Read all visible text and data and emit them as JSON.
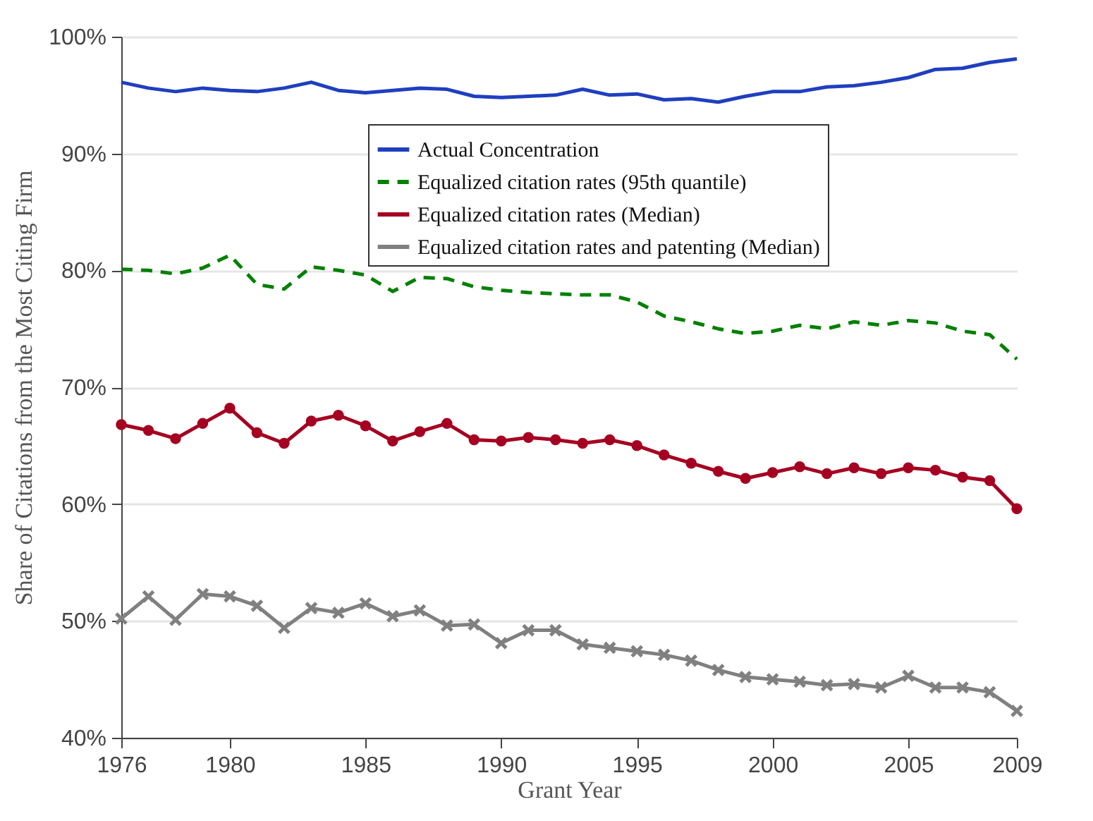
{
  "chart_data": {
    "type": "line",
    "xlabel": "Grant Year",
    "ylabel": "Share of Citations from the Most Citing Firm",
    "x": [
      1976,
      1977,
      1978,
      1979,
      1980,
      1981,
      1982,
      1983,
      1984,
      1985,
      1986,
      1987,
      1988,
      1989,
      1990,
      1991,
      1992,
      1993,
      1994,
      1995,
      1996,
      1997,
      1998,
      1999,
      2000,
      2001,
      2002,
      2003,
      2004,
      2005,
      2006,
      2007,
      2008,
      2009
    ],
    "xlim": [
      1976,
      2009
    ],
    "xticks": [
      1976,
      1980,
      1985,
      1990,
      1995,
      2000,
      2005,
      2009
    ],
    "ylim": [
      40,
      100
    ],
    "yticks": [
      {
        "value": 40,
        "label": "40%"
      },
      {
        "value": 50,
        "label": "50%"
      },
      {
        "value": 60,
        "label": "60%"
      },
      {
        "value": 70,
        "label": "70%"
      },
      {
        "value": 80,
        "label": "80%"
      },
      {
        "value": 90,
        "label": "90%"
      },
      {
        "value": 100,
        "label": "100%"
      }
    ],
    "grid": "y",
    "legend": "top right",
    "series": [
      {
        "name": "Actual Concentration",
        "color": "#1f3fbf",
        "line_style": "solid",
        "marker": "none",
        "values": [
          96.1,
          95.6,
          95.3,
          95.6,
          95.4,
          95.3,
          95.6,
          96.1,
          95.4,
          95.2,
          95.4,
          95.6,
          95.5,
          94.9,
          94.8,
          94.9,
          95.0,
          95.5,
          95.0,
          95.1,
          94.6,
          94.7,
          94.4,
          94.9,
          95.3,
          95.3,
          95.7,
          95.8,
          96.1,
          96.5,
          97.2,
          97.3,
          97.8,
          98.1
        ]
      },
      {
        "name": "Equalized citation rates (95th quantile)",
        "color": "#008000",
        "line_style": "dashed",
        "marker": "none",
        "values": [
          80.1,
          80.0,
          79.7,
          80.2,
          81.3,
          78.8,
          78.4,
          80.3,
          80.0,
          79.6,
          78.2,
          79.4,
          79.3,
          78.6,
          78.3,
          78.1,
          78.0,
          77.9,
          77.9,
          77.3,
          76.1,
          75.6,
          75.0,
          74.6,
          74.8,
          75.3,
          75.0,
          75.6,
          75.3,
          75.7,
          75.5,
          74.8,
          74.5,
          72.4
        ]
      },
      {
        "name": "Equalized citation rates (Median)",
        "color": "#a50021",
        "line_style": "solid",
        "marker": "circle",
        "values": [
          66.8,
          66.3,
          65.6,
          66.9,
          68.2,
          66.1,
          65.2,
          67.1,
          67.6,
          66.7,
          65.4,
          66.2,
          66.9,
          65.5,
          65.4,
          65.7,
          65.5,
          65.2,
          65.5,
          65.0,
          64.2,
          63.5,
          62.8,
          62.2,
          62.7,
          63.2,
          62.6,
          63.1,
          62.6,
          63.1,
          62.9,
          62.3,
          62.0,
          59.6
        ]
      },
      {
        "name": "Equalized citation rates and patenting (Median)",
        "color": "#808080",
        "line_style": "solid",
        "marker": "cross",
        "values": [
          50.2,
          52.1,
          50.1,
          52.3,
          52.1,
          51.3,
          49.4,
          51.1,
          50.7,
          51.5,
          50.4,
          50.9,
          49.6,
          49.7,
          48.1,
          49.2,
          49.2,
          48.0,
          47.7,
          47.4,
          47.1,
          46.6,
          45.8,
          45.2,
          45.0,
          44.8,
          44.5,
          44.6,
          44.3,
          45.3,
          44.3,
          44.3,
          43.9,
          42.3
        ]
      }
    ]
  }
}
